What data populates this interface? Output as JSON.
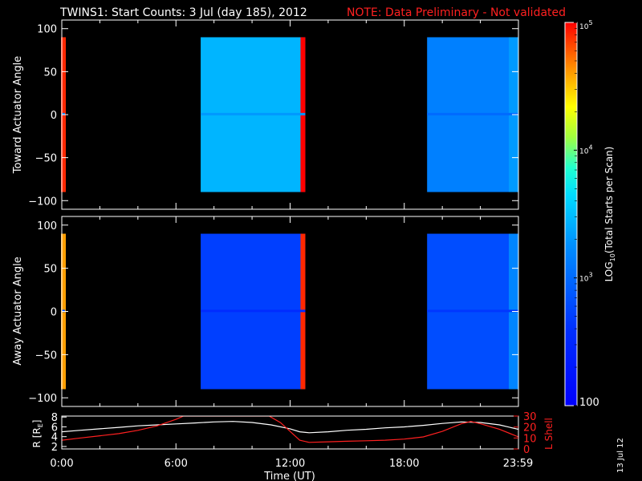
{
  "header": {
    "title": "TWINS1: Start Counts:  3 Jul (day 185), 2012",
    "note": "NOTE: Data Preliminary - Not validated"
  },
  "side_label": "13 Jul 12",
  "colors": {
    "background": "#000000",
    "foreground": "#ffffff",
    "note": "#ff2020",
    "lshell": "#ff2020",
    "radius": "#ffffff"
  },
  "chart_data": [
    {
      "type": "heatmap",
      "panel": "toward",
      "ylabel": "Toward Actuator Angle",
      "x_unit": "hours UT",
      "xlim": [
        0,
        24
      ],
      "ylim": [
        -110,
        110
      ],
      "y_ticks": [
        "100",
        "50",
        "0",
        "-50",
        "-100"
      ],
      "data_extent_y": [
        -90,
        90
      ],
      "segments": [
        {
          "start": 0.0,
          "end": 0.1,
          "level": 3.3,
          "edge_level": 4.9
        },
        {
          "start": 7.3,
          "end": 12.8,
          "level": 3.45,
          "edge_level": 5.0
        },
        {
          "start": 19.2,
          "end": 24.0,
          "level": 3.15,
          "edge_level": 3.4
        }
      ]
    },
    {
      "type": "heatmap",
      "panel": "away",
      "ylabel": "Away Actuator Angle",
      "x_unit": "hours UT",
      "xlim": [
        0,
        24
      ],
      "ylim": [
        -110,
        110
      ],
      "y_ticks": [
        "100",
        "50",
        "0",
        "-50",
        "-100"
      ],
      "data_extent_y": [
        -90,
        90
      ],
      "segments": [
        {
          "start": 0.0,
          "end": 0.1,
          "level": 3.0,
          "edge_level": 4.6
        },
        {
          "start": 7.3,
          "end": 12.8,
          "level": 2.7,
          "edge_level": 4.9
        },
        {
          "start": 19.2,
          "end": 24.0,
          "level": 2.8,
          "edge_level": 3.4
        }
      ]
    },
    {
      "type": "line",
      "panel": "orbit",
      "ylabel_left": "R [R",
      "ylabel_left_sub": "E",
      "ylabel_left_close": "]",
      "ylabel_right": "L Shell",
      "xlabel": "Time (UT)",
      "x_ticks": [
        "0:00",
        "6:00",
        "12:00",
        "18:00",
        "23:59"
      ],
      "x_tick_hours": [
        0,
        6,
        12,
        18,
        23.98
      ],
      "ylim_left": [
        1.5,
        8.2
      ],
      "y_ticks_left": [
        "8",
        "6",
        "4",
        "2"
      ],
      "ylim_right": [
        0,
        30
      ],
      "y_ticks_right": [
        "30",
        "20",
        "10",
        "0"
      ],
      "series": [
        {
          "name": "R",
          "axis": "left",
          "x": [
            0,
            1,
            2,
            3,
            4,
            5,
            6,
            7,
            8,
            9,
            10,
            11,
            12,
            12.5,
            13,
            14,
            15,
            16,
            17,
            18,
            19,
            20,
            21,
            22,
            23,
            24
          ],
          "y": [
            5.0,
            5.3,
            5.6,
            5.9,
            6.2,
            6.4,
            6.6,
            6.8,
            7.0,
            7.1,
            6.9,
            6.4,
            5.6,
            5.0,
            4.8,
            5.0,
            5.3,
            5.5,
            5.8,
            6.0,
            6.3,
            6.7,
            7.0,
            6.9,
            6.4,
            5.5
          ]
        },
        {
          "name": "L Shell",
          "axis": "right",
          "x": [
            0,
            1,
            2,
            3,
            4,
            5,
            6,
            6.4,
            10.9,
            11.5,
            12,
            12.5,
            13,
            14,
            15,
            16,
            17,
            18,
            19,
            20,
            21,
            21.5,
            22,
            23,
            24
          ],
          "y": [
            8,
            10,
            12,
            14,
            17,
            21,
            27,
            30,
            30,
            24,
            16,
            8,
            6,
            6.5,
            7,
            7.5,
            8,
            9,
            11,
            16,
            23,
            25,
            23,
            18,
            11
          ]
        }
      ]
    }
  ],
  "colorbar": {
    "label_prefix": "LOG",
    "label_sub": "10",
    "label_suffix": "(Total Starts per Scan)",
    "range_log10": [
      2,
      5
    ],
    "ticks": [
      {
        "value": 5,
        "base": "10",
        "exp": "5"
      },
      {
        "value": 4,
        "base": "10",
        "exp": "4"
      },
      {
        "value": 3,
        "base": "10",
        "exp": "3"
      },
      {
        "value": 2,
        "base": "100",
        "exp": ""
      }
    ]
  }
}
